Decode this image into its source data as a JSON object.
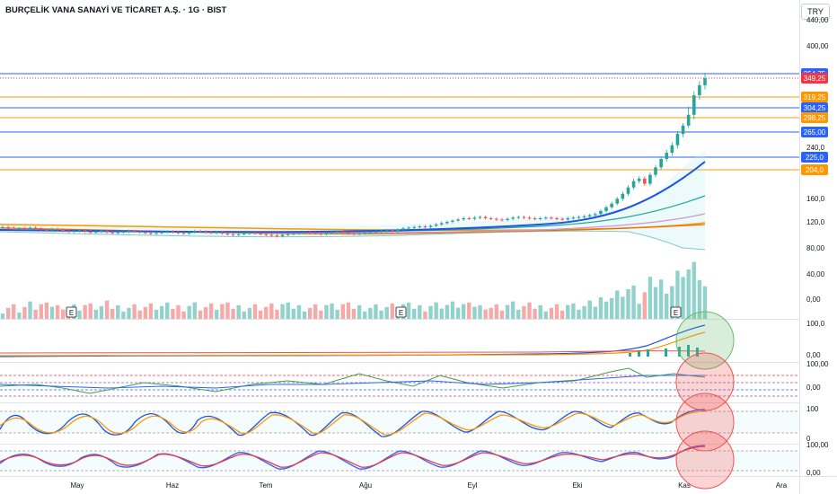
{
  "header": {
    "title": "BURÇELİK VANA SANAYİ VE TİCARET A.Ş. · 1G · BIST",
    "currency": "TRY"
  },
  "chart_data": {
    "type": "candlestick",
    "price_axis_ticks": [
      "440,00",
      "400,00",
      "240,0",
      "160,0",
      "120,0",
      "80,00"
    ],
    "price_levels": [
      {
        "label": "354,75",
        "value": 354.75,
        "color": "#2962ff"
      },
      {
        "label": "349,25",
        "value": 349.25,
        "color": "#f23645"
      },
      {
        "label": "319,25",
        "value": 319.25,
        "color": "#ff9800"
      },
      {
        "label": "304,25",
        "value": 304.25,
        "color": "#2962ff"
      },
      {
        "label": "298,25",
        "value": 298.25,
        "color": "#ff9800"
      },
      {
        "label": "265,00",
        "value": 265.0,
        "color": "#2962ff"
      },
      {
        "label": "225,0",
        "value": 225.0,
        "color": "#2962ff"
      },
      {
        "label": "204,0",
        "value": 204.0,
        "color": "#ff9800"
      }
    ],
    "volume_axis_ticks": [
      "40,00",
      "0,00"
    ],
    "x_ticks": [
      "May",
      "Haz",
      "Tem",
      "Ağu",
      "Eyl",
      "Eki",
      "Kas",
      "Ara"
    ],
    "earnings_markers": [
      "E",
      "E",
      "E"
    ],
    "indicator_panels": [
      {
        "ticks": [
          "100,0",
          "0,00"
        ]
      },
      {
        "ticks": [
          "100,00",
          "0,00"
        ]
      },
      {
        "ticks": [
          "100",
          "0"
        ]
      },
      {
        "ticks": [
          "100,00",
          "0,00"
        ]
      }
    ],
    "closes": [
      112,
      111,
      110,
      110,
      109,
      111,
      110,
      108,
      107,
      109,
      108,
      106,
      105,
      106,
      107,
      105,
      104,
      105,
      106,
      104,
      103,
      104,
      105,
      106,
      105,
      104,
      103,
      102,
      103,
      104,
      105,
      104,
      103,
      102,
      104,
      106,
      105,
      104,
      103,
      104,
      102,
      101,
      100,
      101,
      102,
      103,
      102,
      101,
      100,
      99,
      98,
      100,
      101,
      102,
      103,
      104,
      103,
      102,
      101,
      103,
      104,
      105,
      103,
      102,
      101,
      102,
      103,
      104,
      105,
      106,
      107,
      106,
      108,
      110,
      111,
      112,
      113,
      112,
      114,
      116,
      118,
      120,
      122,
      124,
      126,
      125,
      127,
      128,
      126,
      125,
      124,
      123,
      125,
      127,
      128,
      127,
      126,
      125,
      126,
      127,
      126,
      125,
      124,
      126,
      127,
      128,
      129,
      131,
      133,
      138,
      144,
      150,
      158,
      166,
      176,
      186,
      190,
      182,
      196,
      208,
      222,
      232,
      244,
      262,
      280,
      300,
      322,
      338,
      349
    ]
  }
}
